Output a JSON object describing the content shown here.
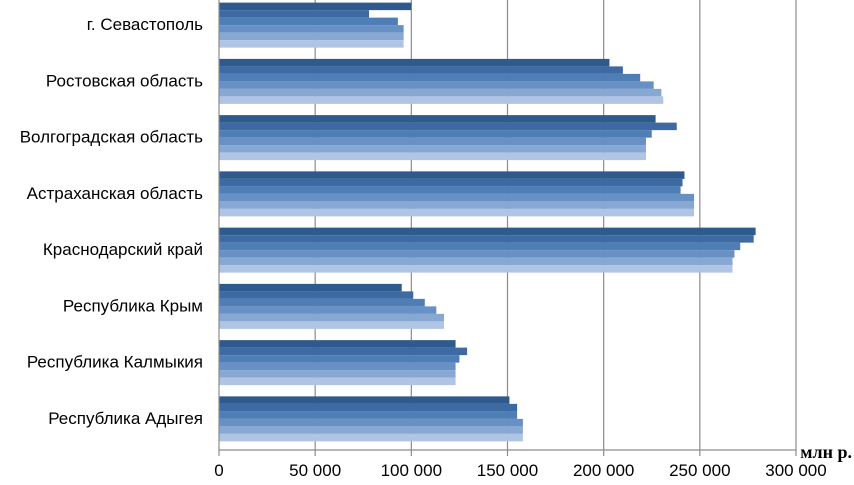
{
  "chart_data": {
    "type": "bar",
    "orientation": "horizontal",
    "categories": [
      "г. Севастополь",
      "Ростовская область",
      "Волгоградская область",
      "Астраханская область",
      "Краснодарский край",
      "Республика Крым",
      "Республика Калмыкия",
      "Республика Адыгея"
    ],
    "series": [
      {
        "color": "#2e5a8e",
        "values": [
          100000,
          203000,
          227000,
          242000,
          279000,
          95000,
          123000,
          151000
        ]
      },
      {
        "color": "#3d6aa3",
        "values": [
          78000,
          210000,
          238000,
          241000,
          278000,
          101000,
          129000,
          155000
        ]
      },
      {
        "color": "#4f7db6",
        "values": [
          93000,
          219000,
          225000,
          240000,
          271000,
          107000,
          125000,
          155000
        ]
      },
      {
        "color": "#6790c4",
        "values": [
          96000,
          226000,
          222000,
          247000,
          268000,
          113000,
          123000,
          158000
        ]
      },
      {
        "color": "#86a8d3",
        "values": [
          96000,
          230000,
          222000,
          247000,
          267000,
          117000,
          123000,
          158000
        ]
      },
      {
        "color": "#b0c4e4",
        "values": [
          96000,
          231000,
          222000,
          247000,
          267000,
          117000,
          123000,
          158000
        ]
      }
    ],
    "xlim": [
      0,
      300000
    ],
    "x_ticks": [
      "0",
      "50 000",
      "100 000",
      "150 000",
      "200 000",
      "250 000",
      "300 000"
    ],
    "x_unit": "млн р.",
    "grid": "vertical",
    "legend": "none"
  }
}
